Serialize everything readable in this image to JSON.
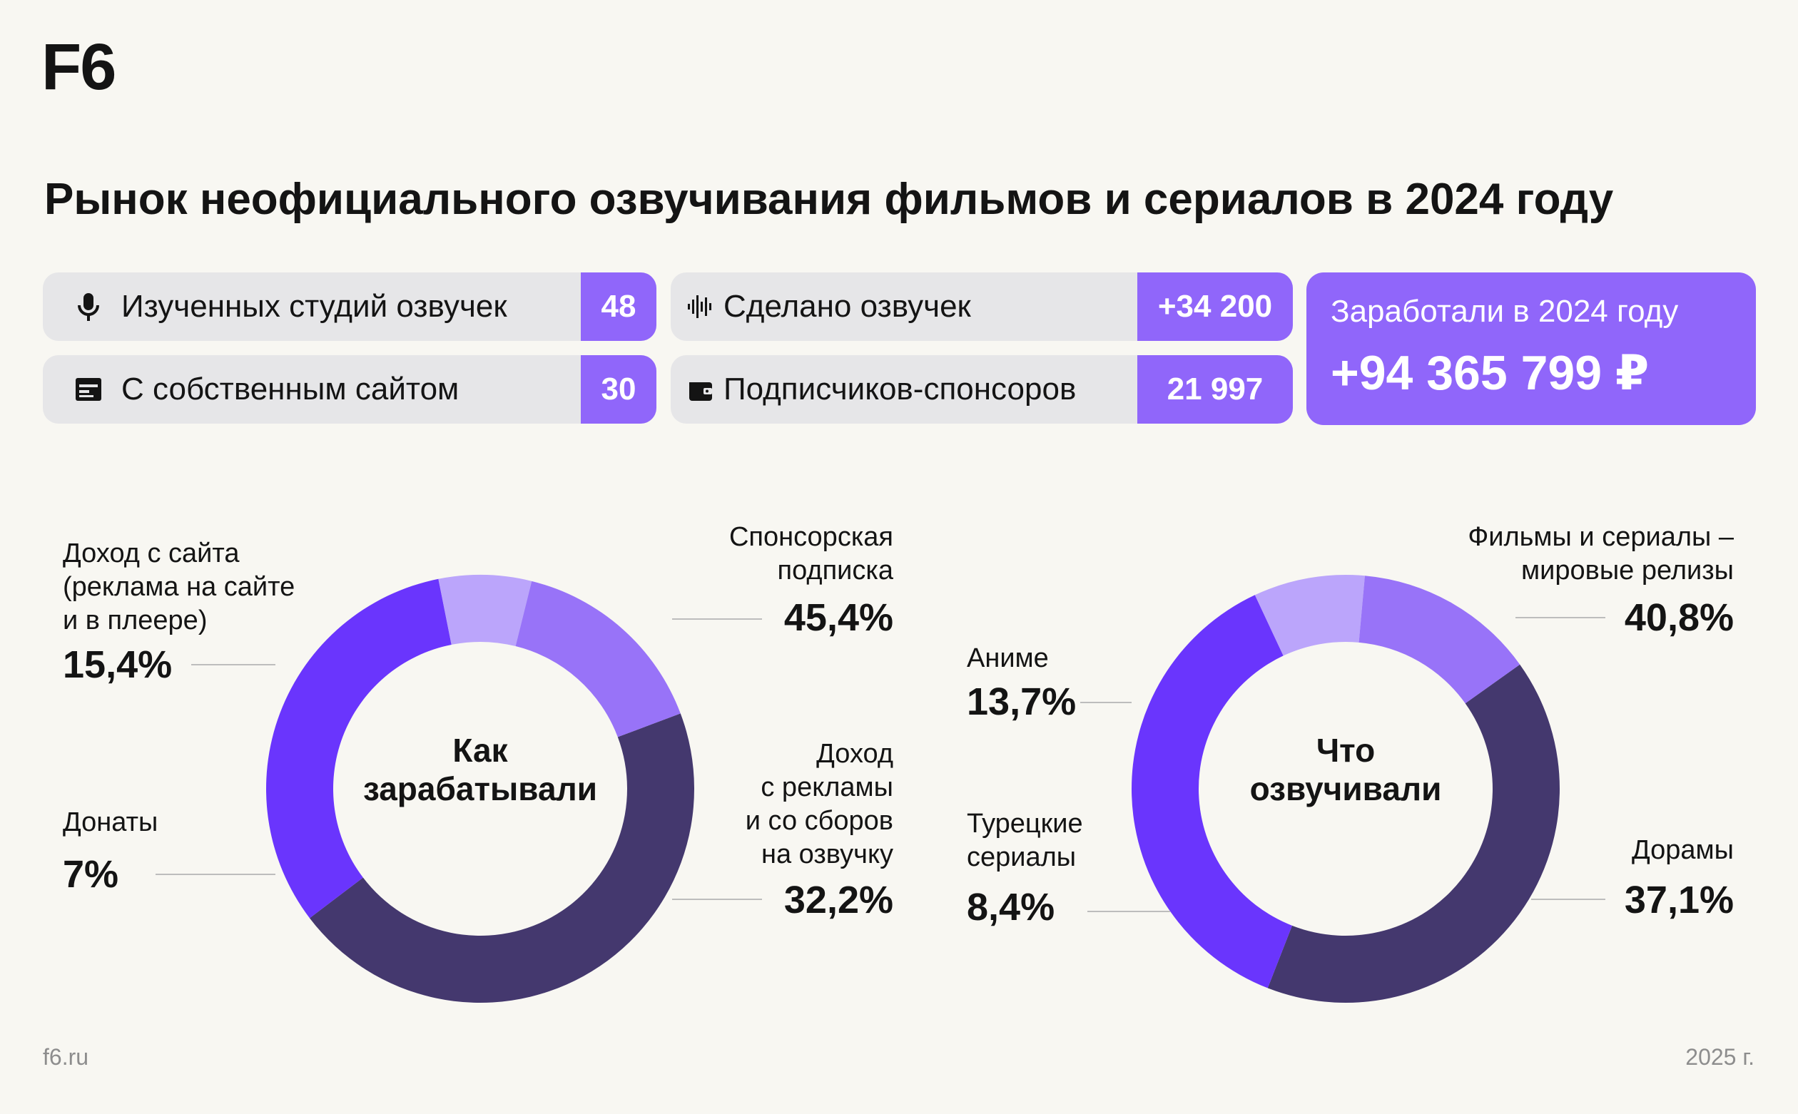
{
  "logo": "F6",
  "title": "Рынок неофициального озвучивания фильмов и сериалов в 2024 году",
  "stats": {
    "studies_label": "Изученных студий озвучек",
    "studies_value": "48",
    "own_site_label": "С собственным сайтом",
    "own_site_value": "30",
    "dubs_label": "Сделано озвучек",
    "dubs_value": "+34 200",
    "sponsors_label": "Подписчиков-спонсоров",
    "sponsors_value": "21 997",
    "earned_label": "Заработали в 2024 году",
    "earned_value": "+94 365 799 ₽"
  },
  "icons": {
    "studies": "microphone-icon",
    "own_site": "website-icon",
    "dubs": "sound-wave-icon",
    "sponsors": "wallet-icon"
  },
  "colors": {
    "accent": "#9066fa",
    "dark": "#44386e",
    "mid": "#9873f8",
    "light": "#bba5fb",
    "bright": "#6a35fd",
    "background": "#f8f7f2"
  },
  "chart_data": [
    {
      "type": "pie",
      "title": "Как зарабатывали",
      "center_lines": [
        "Как",
        "зарабатывали"
      ],
      "slices": [
        {
          "lines": [
            "Спонсорская",
            "подписка"
          ],
          "pct_label": "45,4%",
          "value": 45.4,
          "color": "#44386e"
        },
        {
          "lines": [
            "Доход",
            "с рекламы",
            "и со сборов",
            "на озвучку"
          ],
          "pct_label": "32,2%",
          "value": 32.2,
          "color": "#6a35fd"
        },
        {
          "lines": [
            "Донаты"
          ],
          "pct_label": "7%",
          "value": 7.0,
          "color": "#bba5fb"
        },
        {
          "lines": [
            "Доход с сайта",
            "(реклама на сайте",
            "и в плеере)"
          ],
          "pct_label": "15,4%",
          "value": 15.4,
          "color": "#9873f8"
        }
      ]
    },
    {
      "type": "pie",
      "title": "Что озвучивали",
      "center_lines": [
        "Что",
        "озвучивали"
      ],
      "slices": [
        {
          "lines": [
            "Фильмы и сериалы –",
            "мировые релизы"
          ],
          "pct_label": "40,8%",
          "value": 40.8,
          "color": "#44386e"
        },
        {
          "lines": [
            "Дорамы"
          ],
          "pct_label": "37,1%",
          "value": 37.1,
          "color": "#6a35fd"
        },
        {
          "lines": [
            "Турецкие",
            "сериалы"
          ],
          "pct_label": "8,4%",
          "value": 8.4,
          "color": "#bba5fb"
        },
        {
          "lines": [
            "Аниме"
          ],
          "pct_label": "13,7%",
          "value": 13.7,
          "color": "#9873f8"
        }
      ]
    }
  ],
  "footer": {
    "site": "f6.ru",
    "year": "2025 г."
  }
}
